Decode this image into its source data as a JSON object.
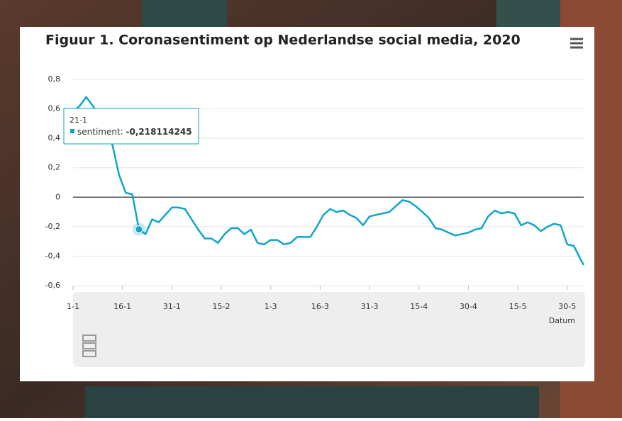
{
  "chart_data": {
    "type": "line",
    "title": "Figuur 1. Coronasentiment op Nederlandse social media, 2020",
    "x_label": "Datum",
    "x": [
      "1-1",
      "3-1",
      "5-1",
      "7-1",
      "9-1",
      "11-1",
      "13-1",
      "15-1",
      "17-1",
      "19-1",
      "21-1",
      "23-1",
      "25-1",
      "27-1",
      "29-1",
      "31-1",
      "2-2",
      "4-2",
      "6-2",
      "8-2",
      "10-2",
      "12-2",
      "14-2",
      "16-2",
      "18-2",
      "20-2",
      "22-2",
      "24-2",
      "26-2",
      "28-2",
      "1-3",
      "3-3",
      "5-3",
      "7-3",
      "9-3",
      "11-3",
      "13-3",
      "15-3",
      "17-3",
      "19-3",
      "21-3",
      "23-3",
      "25-3",
      "27-3",
      "29-3",
      "31-3",
      "2-4",
      "4-4",
      "6-4",
      "8-4",
      "10-4",
      "12-4",
      "14-4",
      "16-4",
      "18-4",
      "20-4",
      "22-4",
      "24-4",
      "26-4",
      "28-4",
      "30-4",
      "2-5",
      "4-5",
      "6-5",
      "8-5",
      "10-5",
      "12-5",
      "14-5",
      "16-5",
      "18-5",
      "20-5",
      "22-5",
      "24-5",
      "26-5",
      "28-5",
      "30-5",
      "1-6",
      "3-6",
      "4-6"
    ],
    "series": [
      {
        "name": "sentiment",
        "color": "#0ea5c9",
        "values": [
          0.58,
          0.62,
          0.68,
          0.62,
          0.55,
          0.47,
          0.35,
          0.15,
          0.03,
          0.02,
          -0.218114245,
          -0.25,
          -0.15,
          -0.17,
          -0.12,
          -0.07,
          -0.07,
          -0.08,
          -0.15,
          -0.22,
          -0.28,
          -0.28,
          -0.31,
          -0.25,
          -0.21,
          -0.21,
          -0.25,
          -0.22,
          -0.31,
          -0.32,
          -0.29,
          -0.29,
          -0.32,
          -0.31,
          -0.27,
          -0.27,
          -0.27,
          -0.2,
          -0.12,
          -0.08,
          -0.1,
          -0.09,
          -0.12,
          -0.14,
          -0.19,
          -0.13,
          -0.12,
          -0.11,
          -0.1,
          -0.06,
          -0.02,
          -0.03,
          -0.06,
          -0.1,
          -0.14,
          -0.21,
          -0.22,
          -0.24,
          -0.26,
          -0.25,
          -0.24,
          -0.22,
          -0.21,
          -0.13,
          -0.09,
          -0.11,
          -0.1,
          -0.11,
          -0.19,
          -0.17,
          -0.19,
          -0.23,
          -0.2,
          -0.18,
          -0.19,
          -0.32,
          -0.33,
          -0.42,
          -0.46
        ]
      }
    ],
    "xlim": [
      "1-1",
      "4-6"
    ],
    "xticks": [
      "1-1",
      "16-1",
      "31-1",
      "15-2",
      "1-3",
      "16-3",
      "31-3",
      "15-4",
      "30-4",
      "15-5",
      "30-5"
    ],
    "ylim": [
      -0.6,
      0.8
    ],
    "yticks": [
      {
        "value": -0.6,
        "label": "-0,6"
      },
      {
        "value": -0.4,
        "label": "-0,4"
      },
      {
        "value": -0.2,
        "label": "-0,2"
      },
      0,
      {
        "value": 0.2,
        "label": "0,2"
      },
      {
        "value": 0.4,
        "label": "0,4"
      },
      {
        "value": 0.6,
        "label": "0,6"
      },
      {
        "value": 0.8,
        "label": "0,8"
      }
    ],
    "grid": true,
    "tooltip": {
      "x": "21-1",
      "value": -0.218114245,
      "label": "-0,218114245"
    }
  }
}
